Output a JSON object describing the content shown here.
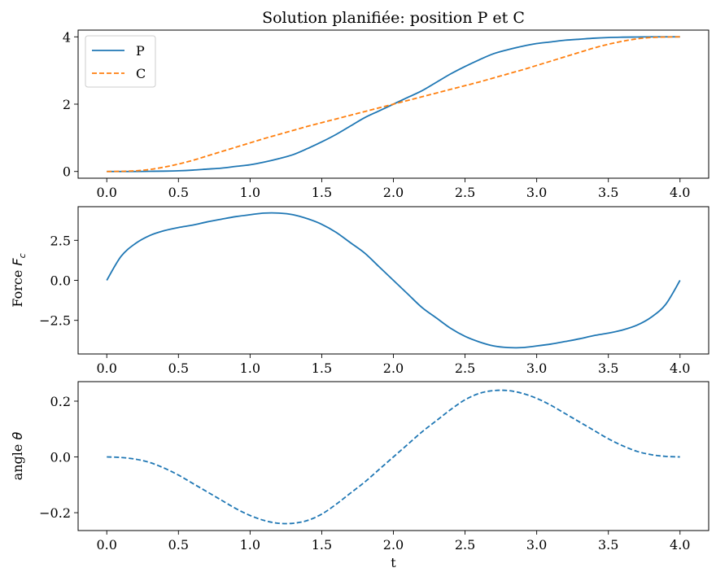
{
  "chart_data": [
    {
      "type": "line",
      "title": "Solution planifiée: position P et C",
      "xlabel": "",
      "ylabel": "",
      "xlim": [
        -0.2,
        4.2
      ],
      "ylim": [
        -0.2,
        4.2
      ],
      "xticks": [
        "0.0",
        "0.5",
        "1.0",
        "1.5",
        "2.0",
        "2.5",
        "3.0",
        "3.5",
        "4.0"
      ],
      "yticks": [
        {
          "v": 0,
          "label": "0"
        },
        {
          "v": 2,
          "label": "2"
        },
        {
          "v": 4,
          "label": "4"
        }
      ],
      "legend": "top-left",
      "x_start": 0,
      "x_step": 0.1,
      "series": [
        {
          "name": "P",
          "style": "solid",
          "color": "#1f77b4",
          "values": [
            0,
            0,
            0,
            0.005,
            0.01,
            0.02,
            0.04,
            0.07,
            0.1,
            0.15,
            0.2,
            0.28,
            0.38,
            0.5,
            0.68,
            0.88,
            1.1,
            1.35,
            1.6,
            1.8,
            2,
            2.2,
            2.4,
            2.65,
            2.9,
            3.12,
            3.32,
            3.5,
            3.62,
            3.72,
            3.8,
            3.85,
            3.9,
            3.93,
            3.96,
            3.98,
            3.99,
            3.995,
            4,
            4,
            4
          ]
        },
        {
          "name": "C",
          "style": "dashed",
          "color": "#ff7f0e",
          "values": [
            0,
            0.005,
            0.02,
            0.06,
            0.13,
            0.22,
            0.33,
            0.46,
            0.59,
            0.72,
            0.85,
            0.98,
            1.1,
            1.22,
            1.34,
            1.45,
            1.56,
            1.67,
            1.78,
            1.89,
            2,
            2.11,
            2.22,
            2.33,
            2.44,
            2.55,
            2.66,
            2.78,
            2.9,
            3.02,
            3.15,
            3.28,
            3.41,
            3.54,
            3.67,
            3.78,
            3.87,
            3.94,
            3.98,
            3.995,
            4
          ]
        }
      ]
    },
    {
      "type": "line",
      "title": "",
      "xlabel": "",
      "ylabel": "Force F_c",
      "ylabel_main": "Force ",
      "ylabel_math": "F",
      "ylabel_sub": "c",
      "xlim": [
        -0.2,
        4.2
      ],
      "ylim": [
        -4.6,
        4.6
      ],
      "xticks": [
        "0.0",
        "0.5",
        "1.0",
        "1.5",
        "2.0",
        "2.5",
        "3.0",
        "3.5",
        "4.0"
      ],
      "yticks": [
        {
          "v": 2.5,
          "label": "2.5"
        },
        {
          "v": 0,
          "label": "0.0"
        },
        {
          "v": -2.5,
          "label": "−2.5"
        }
      ],
      "x_start": 0,
      "x_step": 0.1,
      "series": [
        {
          "name": "Fc",
          "style": "solid",
          "color": "#1f77b4",
          "values": [
            0,
            1.5,
            2.3,
            2.8,
            3.1,
            3.3,
            3.45,
            3.65,
            3.82,
            3.98,
            4.1,
            4.2,
            4.2,
            4.1,
            3.85,
            3.5,
            3.0,
            2.35,
            1.7,
            0.85,
            0,
            -0.85,
            -1.7,
            -2.35,
            -3.0,
            -3.5,
            -3.85,
            -4.1,
            -4.2,
            -4.2,
            -4.1,
            -3.98,
            -3.82,
            -3.65,
            -3.45,
            -3.3,
            -3.1,
            -2.8,
            -2.3,
            -1.5,
            0
          ]
        }
      ]
    },
    {
      "type": "line",
      "title": "",
      "xlabel": "t",
      "ylabel": "angle θ",
      "ylabel_main": "angle ",
      "ylabel_math": "θ",
      "xlim": [
        -0.2,
        4.2
      ],
      "ylim": [
        -0.264,
        0.27
      ],
      "xticks": [
        "0.0",
        "0.5",
        "1.0",
        "1.5",
        "2.0",
        "2.5",
        "3.0",
        "3.5",
        "4.0"
      ],
      "yticks": [
        {
          "v": 0.2,
          "label": "0.2"
        },
        {
          "v": 0,
          "label": "0.0"
        },
        {
          "v": -0.2,
          "label": "−0.2"
        }
      ],
      "x_start": 0,
      "x_step": 0.1,
      "series": [
        {
          "name": "theta",
          "style": "dashed",
          "color": "#1f77b4",
          "values": [
            0,
            -0.002,
            -0.008,
            -0.02,
            -0.04,
            -0.065,
            -0.095,
            -0.125,
            -0.155,
            -0.185,
            -0.21,
            -0.228,
            -0.238,
            -0.238,
            -0.228,
            -0.205,
            -0.17,
            -0.13,
            -0.09,
            -0.045,
            0,
            0.045,
            0.09,
            0.13,
            0.17,
            0.205,
            0.228,
            0.238,
            0.238,
            0.228,
            0.21,
            0.185,
            0.155,
            0.125,
            0.095,
            0.065,
            0.04,
            0.02,
            0.008,
            0.002,
            0
          ]
        }
      ]
    }
  ]
}
